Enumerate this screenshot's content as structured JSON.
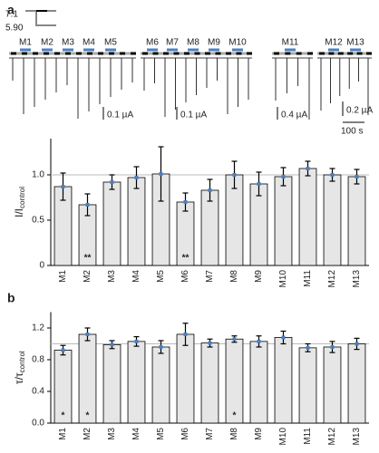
{
  "panels": [
    "a",
    "b"
  ],
  "traces": {
    "ph_labels": [
      "7.1",
      "5.90"
    ],
    "labels": [
      "M1",
      "M2",
      "M3",
      "M4",
      "M5",
      "M6",
      "M7",
      "M8",
      "M9",
      "M10",
      "M11",
      "M12",
      "M13"
    ],
    "scale_bars": [
      "0.1 µA",
      "0.1 µA",
      "0.4 µA",
      "0.2 µA"
    ],
    "time_bar": "100 s"
  },
  "chart_data": [
    {
      "type": "bar",
      "ylabel": "I/I",
      "ylabel_sub": "control",
      "categories": [
        "M1",
        "M2",
        "M3",
        "M4",
        "M5",
        "M6",
        "M7",
        "M8",
        "M9",
        "M10",
        "M11",
        "M12",
        "M13"
      ],
      "values": [
        0.87,
        0.67,
        0.92,
        0.97,
        1.01,
        0.7,
        0.83,
        1.0,
        0.9,
        0.98,
        1.07,
        1.0,
        0.98
      ],
      "errors": [
        0.15,
        0.12,
        0.08,
        0.12,
        0.3,
        0.1,
        0.12,
        0.15,
        0.13,
        0.1,
        0.08,
        0.07,
        0.08
      ],
      "significance": [
        null,
        "**",
        null,
        null,
        null,
        "**",
        null,
        null,
        null,
        null,
        null,
        null,
        null
      ],
      "color": "#e6e6e6",
      "reference_line": 1,
      "ylim": [
        0,
        1.4
      ],
      "yticks": [
        0,
        0.5,
        {
          "value": 1,
          "label": "1.0"
        }
      ]
    },
    {
      "type": "bar",
      "ylabel": "τ/τ",
      "ylabel_sub": "control",
      "categories": [
        "M1",
        "M2",
        "M3",
        "M4",
        "M5",
        "M6",
        "M7",
        "M8",
        "M9",
        "M10",
        "M11",
        "M12",
        "M13"
      ],
      "values": [
        0.92,
        1.12,
        0.99,
        1.03,
        0.96,
        1.12,
        1.01,
        1.06,
        1.03,
        1.08,
        0.95,
        0.96,
        1.0
      ],
      "errors": [
        0.06,
        0.08,
        0.05,
        0.06,
        0.08,
        0.14,
        0.05,
        0.04,
        0.07,
        0.08,
        0.05,
        0.07,
        0.07
      ],
      "significance": [
        "*",
        "*",
        null,
        null,
        null,
        null,
        null,
        "*",
        null,
        null,
        null,
        null,
        null
      ],
      "color": "#e6e6e6",
      "reference_line": 1,
      "ylim": [
        0,
        1.4
      ],
      "yticks": [
        {
          "value": 0,
          "label": "0.0"
        },
        0.4,
        0.8,
        1.2
      ]
    }
  ]
}
